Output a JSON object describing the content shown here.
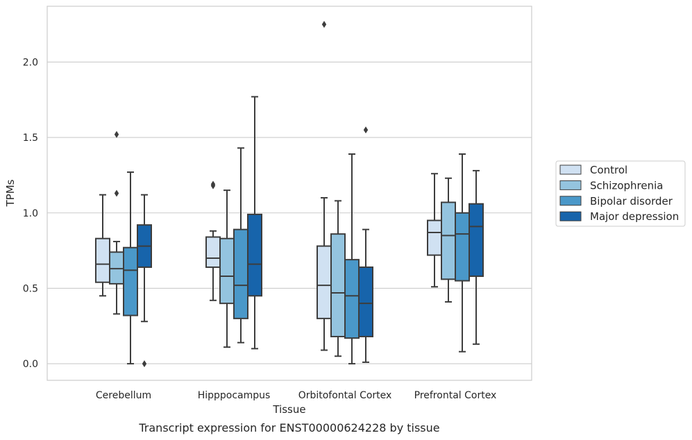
{
  "caption": "Transcript expression for ENST00000624228 by tissue",
  "chart_data": {
    "type": "boxplot",
    "xlabel": "Tissue",
    "ylabel": "TPMs",
    "ylim": [
      -0.11,
      2.37
    ],
    "yticks": [
      0.0,
      0.5,
      1.0,
      1.5,
      2.0
    ],
    "ytick_labels": [
      "0.0",
      "0.5",
      "1.0",
      "1.5",
      "2.0"
    ],
    "grid": "horizontal",
    "legend_position": "right-center",
    "categories": [
      "Cerebellum",
      "Hipppocampus",
      "Orbitofontal Cortex",
      "Prefrontal Cortex"
    ],
    "series": [
      {
        "name": "Control",
        "color": "#d0e1f2",
        "boxes": [
          {
            "whislo": 0.45,
            "q1": 0.54,
            "med": 0.66,
            "q3": 0.83,
            "whishi": 1.12,
            "fliers": []
          },
          {
            "whislo": 0.42,
            "q1": 0.64,
            "med": 0.7,
            "q3": 0.84,
            "whishi": 0.88,
            "fliers": [
              1.18,
              1.19
            ]
          },
          {
            "whislo": 0.09,
            "q1": 0.3,
            "med": 0.52,
            "q3": 0.78,
            "whishi": 1.1,
            "fliers": [
              2.25
            ]
          },
          {
            "whislo": 0.51,
            "q1": 0.72,
            "med": 0.87,
            "q3": 0.95,
            "whishi": 1.26,
            "fliers": []
          }
        ]
      },
      {
        "name": "Schizophrenia",
        "color": "#94c4df",
        "boxes": [
          {
            "whislo": 0.33,
            "q1": 0.53,
            "med": 0.63,
            "q3": 0.74,
            "whishi": 0.81,
            "fliers": [
              1.13,
              1.52
            ]
          },
          {
            "whislo": 0.11,
            "q1": 0.4,
            "med": 0.58,
            "q3": 0.83,
            "whishi": 1.15,
            "fliers": []
          },
          {
            "whislo": 0.05,
            "q1": 0.18,
            "med": 0.47,
            "q3": 0.86,
            "whishi": 1.08,
            "fliers": []
          },
          {
            "whislo": 0.41,
            "q1": 0.56,
            "med": 0.85,
            "q3": 1.07,
            "whishi": 1.23,
            "fliers": []
          }
        ]
      },
      {
        "name": "Bipolar disorder",
        "color": "#4a98c9",
        "boxes": [
          {
            "whislo": 0.0,
            "q1": 0.32,
            "med": 0.62,
            "q3": 0.77,
            "whishi": 1.27,
            "fliers": []
          },
          {
            "whislo": 0.14,
            "q1": 0.3,
            "med": 0.52,
            "q3": 0.89,
            "whishi": 1.43,
            "fliers": []
          },
          {
            "whislo": 0.0,
            "q1": 0.17,
            "med": 0.45,
            "q3": 0.69,
            "whishi": 1.39,
            "fliers": []
          },
          {
            "whislo": 0.08,
            "q1": 0.55,
            "med": 0.86,
            "q3": 1.0,
            "whishi": 1.39,
            "fliers": []
          }
        ]
      },
      {
        "name": "Major depression",
        "color": "#1764ab",
        "boxes": [
          {
            "whislo": 0.28,
            "q1": 0.64,
            "med": 0.78,
            "q3": 0.92,
            "whishi": 1.12,
            "fliers": [
              0.0
            ]
          },
          {
            "whislo": 0.1,
            "q1": 0.45,
            "med": 0.66,
            "q3": 0.99,
            "whishi": 1.77,
            "fliers": []
          },
          {
            "whislo": 0.01,
            "q1": 0.18,
            "med": 0.4,
            "q3": 0.64,
            "whishi": 0.89,
            "fliers": [
              1.55
            ]
          },
          {
            "whislo": 0.13,
            "q1": 0.58,
            "med": 0.91,
            "q3": 1.06,
            "whishi": 1.28,
            "fliers": []
          }
        ]
      }
    ]
  },
  "colors": {
    "grid": "#cccccc",
    "frame": "#cccccc",
    "line": "#3d3d3d",
    "text": "#262626"
  }
}
